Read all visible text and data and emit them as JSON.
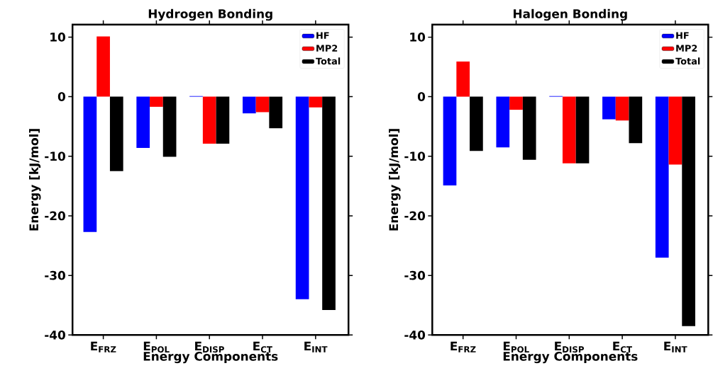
{
  "chart_data": [
    {
      "type": "bar",
      "title": "Hydrogen Bonding",
      "xlabel": "Energy Components",
      "ylabel": "Energy [kJ/mol]",
      "categories": [
        "E$_{FRZ}$",
        "E$_{POL}$",
        "E$_{DISP}$",
        "E$_{CT}$",
        "E$_{INT}$"
      ],
      "series": [
        {
          "name": "HF",
          "color": "#0000ff",
          "values": [
            -22.7,
            -8.6,
            0.1,
            -2.8,
            -34.0
          ]
        },
        {
          "name": "MP2",
          "color": "#ff0000",
          "values": [
            10.1,
            -1.7,
            -7.9,
            -2.6,
            -1.8
          ]
        },
        {
          "name": "Total",
          "color": "#000000",
          "values": [
            -12.5,
            -10.1,
            -7.9,
            -5.3,
            -35.8
          ]
        }
      ],
      "ylim": [
        -40,
        12.1
      ],
      "yticks": [
        -40,
        -30,
        -20,
        -10,
        0,
        10
      ],
      "legend": "top right"
    },
    {
      "type": "bar",
      "title": "Halogen Bonding",
      "xlabel": "Energy Components",
      "ylabel": "Energy [kJ/mol]",
      "categories": [
        "E$_{FRZ}$",
        "E$_{POL}$",
        "E$_{DISP}$",
        "E$_{CT}$",
        "E$_{INT}$"
      ],
      "series": [
        {
          "name": "HF",
          "color": "#0000ff",
          "values": [
            -14.9,
            -8.5,
            0.1,
            -3.8,
            -27.0
          ]
        },
        {
          "name": "MP2",
          "color": "#ff0000",
          "values": [
            5.9,
            -2.2,
            -11.2,
            -4.0,
            -11.4
          ]
        },
        {
          "name": "Total",
          "color": "#000000",
          "values": [
            -9.1,
            -10.6,
            -11.2,
            -7.8,
            -38.5
          ]
        }
      ],
      "ylim": [
        -40,
        12.1
      ],
      "yticks": [
        -40,
        -30,
        -20,
        -10,
        0,
        10
      ],
      "legend": "top right"
    }
  ]
}
